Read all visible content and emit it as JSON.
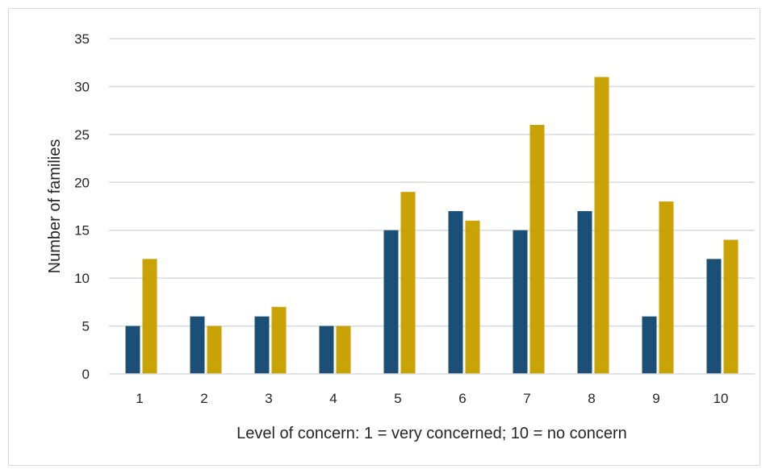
{
  "chart_data": {
    "type": "bar",
    "title": "",
    "xlabel": "Level of concern: 1 = very concerned; 10 = no concern",
    "ylabel": "Number of families",
    "categories": [
      "1",
      "2",
      "3",
      "4",
      "5",
      "6",
      "7",
      "8",
      "9",
      "10"
    ],
    "series": [
      {
        "values": [
          5,
          6,
          6,
          5,
          15,
          17,
          15,
          17,
          6,
          12
        ],
        "color": "#1a4f78"
      },
      {
        "values": [
          12,
          5,
          7,
          5,
          19,
          16,
          26,
          31,
          18,
          14
        ],
        "color": "#c9a204"
      }
    ],
    "ylim": [
      0,
      35
    ],
    "yticks": [
      0,
      5,
      10,
      15,
      20,
      25,
      30,
      35
    ],
    "grid": true,
    "legend": "none"
  }
}
